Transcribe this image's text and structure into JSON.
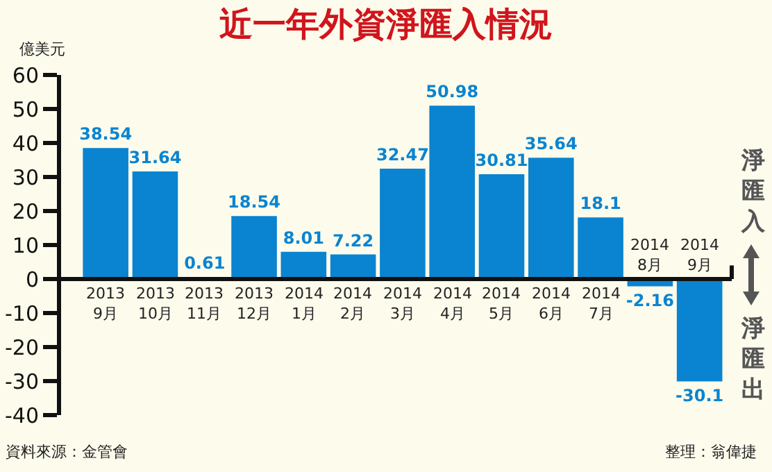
{
  "chart_data": {
    "type": "bar",
    "title": "近一年外資淨匯入情況",
    "ylabel": "億美元",
    "categories": [
      "2013\n9月",
      "2013\n10月",
      "2013\n11月",
      "2013\n12月",
      "2014\n1月",
      "2014\n2月",
      "2014\n3月",
      "2014\n4月",
      "2014\n5月",
      "2014\n6月",
      "2014\n7月",
      "2014\n8月",
      "2014\n9月"
    ],
    "values": [
      38.54,
      31.64,
      0.61,
      18.54,
      8.01,
      7.22,
      32.47,
      50.98,
      30.81,
      35.64,
      18.1,
      -2.16,
      -30.1
    ],
    "color": "#0a84d0",
    "data_labels": true,
    "ylim": [
      -40,
      60
    ],
    "yticks": [
      -40,
      -30,
      -20,
      -10,
      0,
      10,
      20,
      30,
      40,
      50,
      60
    ],
    "grid": false,
    "annotations": [
      "淨匯入",
      "淨匯出",
      "資料來源：金管會",
      "整理：翁偉捷"
    ]
  }
}
